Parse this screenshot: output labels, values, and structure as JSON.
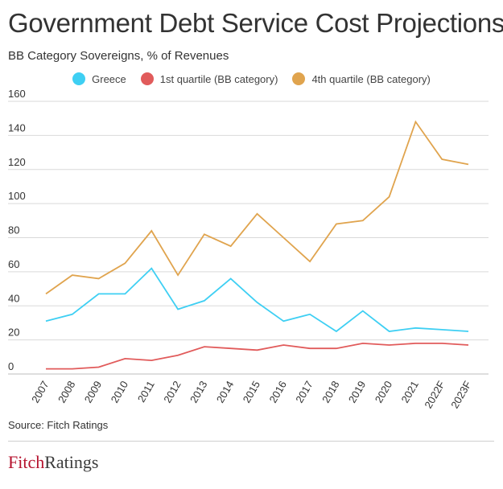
{
  "title": "Government Debt Service Cost Projections",
  "subtitle": "BB Category Sovereigns, % of Revenues",
  "source": "Source: Fitch Ratings",
  "logo": {
    "part1": "Fitch",
    "part2": "Ratings"
  },
  "colors": {
    "greece": "#3ecff3",
    "q1": "#e15b5b",
    "q4": "#e0a44e",
    "grid": "#d9d9d9",
    "text": "#333333"
  },
  "chart_data": {
    "type": "line",
    "title": "Government Debt Service Cost Projections",
    "subtitle": "BB Category Sovereigns, % of Revenues",
    "xlabel": "",
    "ylabel": "",
    "ylim": [
      0,
      160
    ],
    "yticks": [
      0,
      20,
      40,
      60,
      80,
      100,
      120,
      140,
      160
    ],
    "grid": true,
    "legend_position": "top",
    "categories": [
      "2007",
      "2008",
      "2009",
      "2010",
      "2011",
      "2012",
      "2013",
      "2014",
      "2015",
      "2016",
      "2017",
      "2018",
      "2019",
      "2020",
      "2021",
      "2022F",
      "2023F"
    ],
    "series": [
      {
        "name": "Greece",
        "color": "#3ecff3",
        "values": [
          31,
          35,
          47,
          47,
          62,
          38,
          43,
          56,
          42,
          31,
          35,
          25,
          37,
          25,
          27,
          26,
          25
        ]
      },
      {
        "name": "1st quartile (BB category)",
        "color": "#e15b5b",
        "values": [
          3,
          3,
          4,
          9,
          8,
          11,
          16,
          15,
          14,
          17,
          15,
          15,
          18,
          17,
          18,
          18,
          17
        ]
      },
      {
        "name": "4th quartile (BB category)",
        "color": "#e0a44e",
        "values": [
          47,
          58,
          56,
          65,
          84,
          58,
          82,
          75,
          94,
          80,
          66,
          88,
          90,
          104,
          148,
          126,
          123
        ]
      }
    ]
  }
}
